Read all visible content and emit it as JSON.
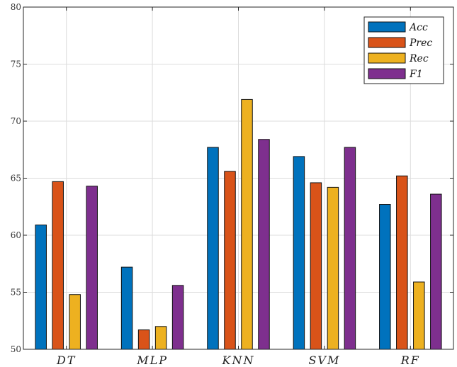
{
  "chart_data": {
    "type": "bar",
    "categories": [
      "DT",
      "MLP",
      "KNN",
      "SVM",
      "RF"
    ],
    "series": [
      {
        "name": "Acc",
        "color": "#0072BD",
        "values": [
          60.9,
          57.2,
          67.7,
          66.9,
          62.7
        ]
      },
      {
        "name": "Prec",
        "color": "#D95319",
        "values": [
          64.7,
          51.7,
          65.6,
          64.6,
          65.2
        ]
      },
      {
        "name": "Rec",
        "color": "#EDB120",
        "values": [
          54.8,
          52.0,
          71.9,
          64.2,
          55.9
        ]
      },
      {
        "name": "F1",
        "color": "#7E2F8E",
        "values": [
          64.3,
          55.6,
          68.4,
          67.7,
          63.6
        ]
      }
    ],
    "ylim": [
      50,
      80
    ],
    "yticks": [
      50,
      55,
      60,
      65,
      70,
      75,
      80
    ],
    "xlabel": "",
    "ylabel": "",
    "grid": true,
    "legend_position": "top-right"
  }
}
